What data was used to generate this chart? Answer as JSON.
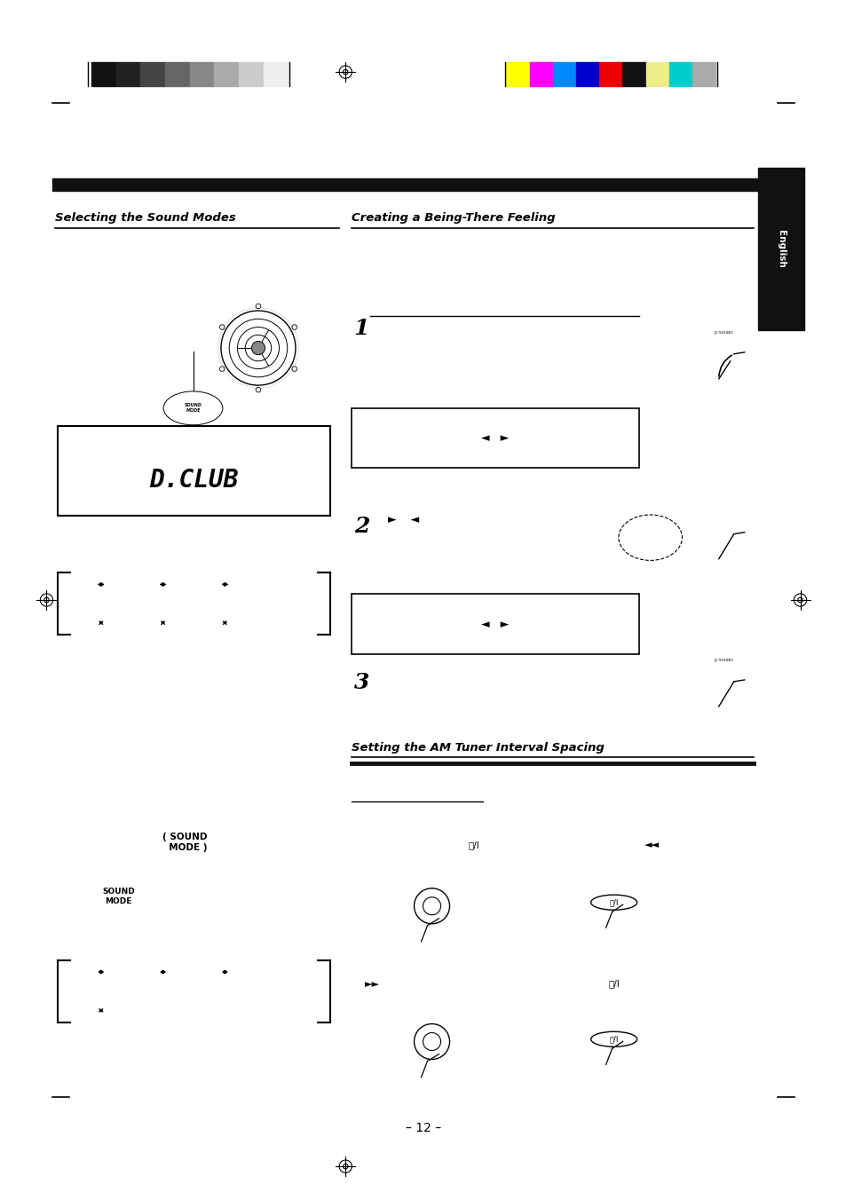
{
  "bg_color": "#ffffff",
  "page_width": 9.54,
  "page_height": 13.52,
  "color_bars_left": [
    "#111111",
    "#222222",
    "#444444",
    "#666666",
    "#888888",
    "#aaaaaa",
    "#cccccc",
    "#eeeeee"
  ],
  "color_bars_right": [
    "#ffff00",
    "#ff00ff",
    "#0088ff",
    "#0000cc",
    "#ee0000",
    "#111111",
    "#eeee88",
    "#00cccc",
    "#aaaaaa"
  ],
  "section1_title": "Selecting the Sound Modes",
  "section2_title": "Creating a Being-There Feeling",
  "section3_title": "Setting the AM Tuner Interval Spacing",
  "english_text": "English",
  "page_number": "– 12 –"
}
